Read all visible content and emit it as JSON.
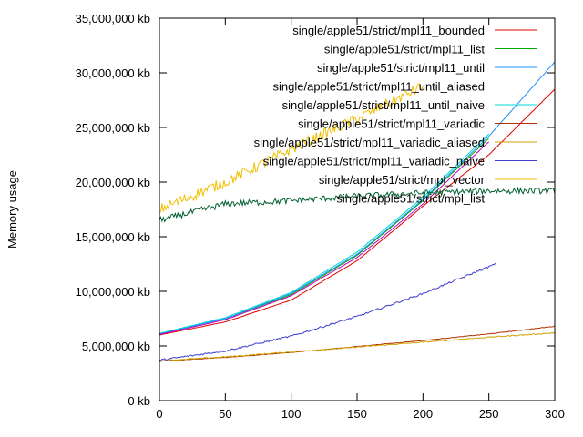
{
  "chart_data": {
    "type": "line",
    "title": "",
    "xlabel": "",
    "ylabel": "Memory usage",
    "xlim": [
      0,
      300
    ],
    "ylim": [
      0,
      35000000
    ],
    "grid": false,
    "legend_position": "top-right",
    "x_ticks": [
      {
        "value": 0,
        "label": "0"
      },
      {
        "value": 50,
        "label": "50"
      },
      {
        "value": 100,
        "label": "100"
      },
      {
        "value": 150,
        "label": "150"
      },
      {
        "value": 200,
        "label": "200"
      },
      {
        "value": 250,
        "label": "250"
      },
      {
        "value": 300,
        "label": "300"
      }
    ],
    "y_ticks": [
      {
        "value": 0,
        "label": "0 kb"
      },
      {
        "value": 5000000,
        "label": "5,000,000 kb"
      },
      {
        "value": 10000000,
        "label": "10,000,000 kb"
      },
      {
        "value": 15000000,
        "label": "15,000,000 kb"
      },
      {
        "value": 20000000,
        "label": "20,000,000 kb"
      },
      {
        "value": 25000000,
        "label": "25,000,000 kb"
      },
      {
        "value": 30000000,
        "label": "30,000,000 kb"
      },
      {
        "value": 35000000,
        "label": "35,000,000 kb"
      }
    ],
    "series": [
      {
        "name": "single/apple51/strict/mpl11_bounded",
        "color": "#e00000",
        "x": [
          0,
          50,
          100,
          150,
          200,
          250,
          300
        ],
        "values": [
          6000000,
          7200000,
          9200000,
          12800000,
          17800000,
          22500000,
          28500000
        ]
      },
      {
        "name": "single/apple51/strict/mpl11_list",
        "color": "#00aa00",
        "x": [
          0,
          50,
          100,
          150,
          200,
          250
        ],
        "values": [
          6100000,
          7500000,
          9700000,
          13300000,
          18300000,
          24000000
        ]
      },
      {
        "name": "single/apple51/strict/mpl11_until",
        "color": "#1e90ff",
        "x": [
          0,
          50,
          100,
          150,
          200,
          250,
          300
        ],
        "values": [
          6100000,
          7500000,
          9800000,
          13400000,
          18400000,
          24200000,
          31000000
        ]
      },
      {
        "name": "single/apple51/strict/mpl11_until_aliased",
        "color": "#c000c0",
        "x": [
          0,
          50,
          100,
          150,
          200,
          250
        ],
        "values": [
          6050000,
          7400000,
          9600000,
          13100000,
          18000000,
          23700000
        ]
      },
      {
        "name": "single/apple51/strict/mpl11_until_naive",
        "color": "#00d8d8",
        "x": [
          0,
          50,
          100,
          150,
          200,
          250
        ],
        "values": [
          6150000,
          7600000,
          9900000,
          13600000,
          18600000,
          24400000
        ]
      },
      {
        "name": "single/apple51/strict/mpl11_variadic",
        "color": "#b03000",
        "x": [
          0,
          50,
          100,
          150,
          200,
          250,
          300
        ],
        "values": [
          3600000,
          3950000,
          4400000,
          4950000,
          5500000,
          6100000,
          6800000
        ]
      },
      {
        "name": "single/apple51/strict/mpl11_variadic_aliased",
        "color": "#d0a000",
        "x": [
          0,
          50,
          100,
          150,
          200,
          250,
          300
        ],
        "values": [
          3650000,
          4000000,
          4450000,
          4900000,
          5350000,
          5800000,
          6200000
        ]
      },
      {
        "name": "single/apple51/strict/mpl11_variadic_naive",
        "color": "#4040d0",
        "x": [
          0,
          50,
          100,
          150,
          200,
          255
        ],
        "values": [
          3700000,
          4550000,
          5900000,
          7700000,
          9800000,
          12500000
        ]
      },
      {
        "name": "single/apple51/strict/mpl_vector",
        "color": "#f0c000",
        "x": [
          0,
          50,
          100,
          150,
          200
        ],
        "values": [
          17500000,
          20000000,
          23000000,
          25800000,
          28800000
        ]
      },
      {
        "name": "single/apple51/strict/mpl_list",
        "color": "#006030",
        "x": [
          0,
          50,
          100,
          150,
          200,
          250,
          300
        ],
        "values": [
          16500000,
          18000000,
          18300000,
          18700000,
          19000000,
          19200000,
          19200000
        ]
      }
    ]
  }
}
